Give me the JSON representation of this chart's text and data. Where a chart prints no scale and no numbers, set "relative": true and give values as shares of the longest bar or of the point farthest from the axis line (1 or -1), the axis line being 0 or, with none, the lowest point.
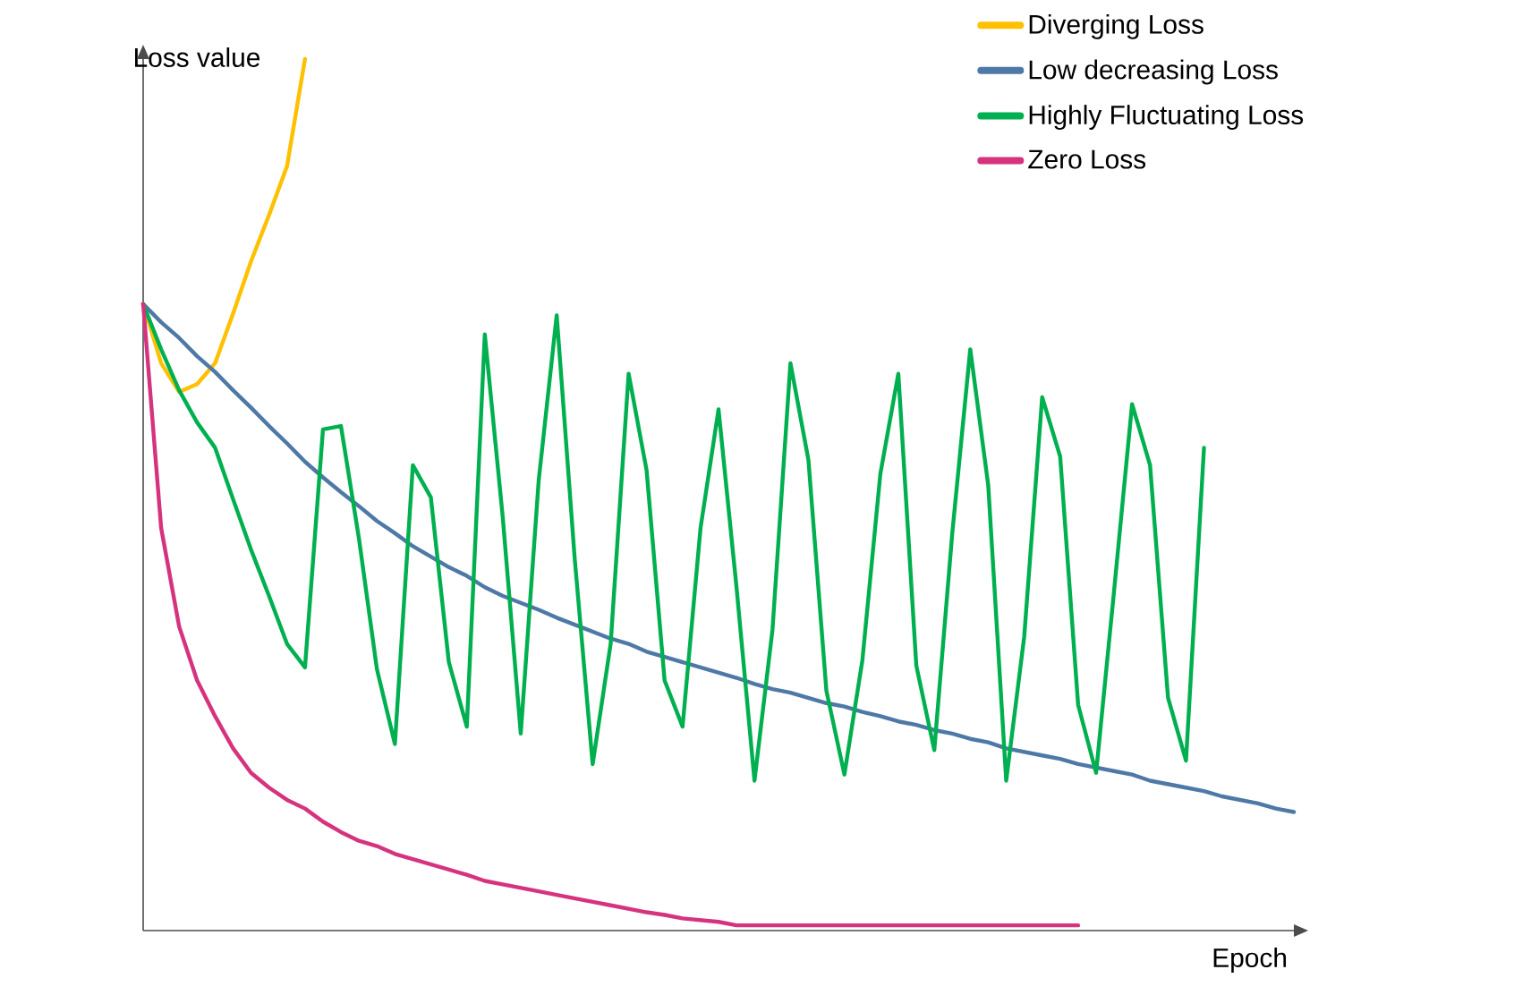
{
  "chart_data": {
    "type": "line",
    "relative": true,
    "xlabel": "Epoch",
    "ylabel": "Loss value",
    "legend": "top right",
    "marker": "none",
    "line_style": "solid",
    "categories": [
      null,
      null,
      null,
      null,
      null,
      null,
      null,
      null,
      null,
      null,
      null,
      null,
      null,
      null,
      null,
      null,
      null,
      null,
      null,
      null,
      null,
      null,
      null,
      null,
      null,
      null,
      null,
      null,
      null,
      null,
      null,
      null,
      null,
      null,
      null,
      null,
      null,
      null,
      null,
      null,
      null,
      null,
      null,
      null,
      null,
      null,
      null,
      null,
      null,
      null,
      null,
      null,
      null,
      null,
      null,
      null,
      null,
      null,
      null,
      null,
      null,
      null,
      null,
      null,
      null
    ],
    "series": [
      {
        "name": "Diverging Loss",
        "color": "#ffc000",
        "values": [
          0.719,
          0.651,
          0.618,
          0.627,
          0.651,
          0.708,
          0.768,
          0.821,
          0.877,
          1.0,
          null,
          null,
          null,
          null,
          null,
          null,
          null,
          null,
          null,
          null,
          null,
          null,
          null,
          null,
          null,
          null,
          null,
          null,
          null,
          null,
          null,
          null,
          null,
          null,
          null,
          null,
          null,
          null,
          null,
          null,
          null,
          null,
          null,
          null,
          null,
          null,
          null,
          null,
          null,
          null,
          null,
          null,
          null,
          null,
          null,
          null,
          null,
          null,
          null,
          null,
          null,
          null,
          null,
          null,
          null
        ]
      },
      {
        "name": "Low decreasing Loss",
        "color": "#4e79a7",
        "values": [
          0.719,
          0.698,
          0.68,
          0.659,
          0.641,
          0.62,
          0.6,
          0.579,
          0.559,
          0.538,
          0.52,
          0.503,
          0.487,
          0.47,
          0.456,
          0.441,
          0.429,
          0.417,
          0.407,
          0.394,
          0.384,
          0.376,
          0.368,
          0.359,
          0.351,
          0.343,
          0.335,
          0.329,
          0.32,
          0.314,
          0.308,
          0.302,
          0.296,
          0.29,
          0.283,
          0.277,
          0.273,
          0.267,
          0.261,
          0.257,
          0.251,
          0.246,
          0.24,
          0.236,
          0.23,
          0.226,
          0.22,
          0.216,
          0.209,
          0.205,
          0.201,
          0.197,
          0.191,
          0.187,
          0.183,
          0.179,
          0.172,
          0.168,
          0.164,
          0.16,
          0.154,
          0.15,
          0.146,
          0.14,
          0.136
        ]
      },
      {
        "name": "Highly Fluctuating Loss",
        "color": "#00b050",
        "values": [
          0.719,
          0.667,
          0.62,
          0.583,
          0.554,
          0.495,
          0.437,
          0.384,
          0.329,
          0.302,
          0.575,
          0.579,
          0.45,
          0.3,
          0.214,
          0.534,
          0.497,
          0.308,
          0.234,
          0.684,
          0.474,
          0.226,
          0.517,
          0.706,
          0.427,
          0.191,
          0.329,
          0.639,
          0.528,
          0.287,
          0.234,
          0.462,
          0.598,
          0.394,
          0.172,
          0.345,
          0.651,
          0.54,
          0.275,
          0.179,
          0.31,
          0.524,
          0.639,
          0.304,
          0.207,
          0.456,
          0.667,
          0.511,
          0.172,
          0.337,
          0.612,
          0.544,
          0.259,
          0.181,
          0.39,
          0.604,
          0.534,
          0.267,
          0.195,
          0.554,
          null,
          null,
          null,
          null,
          null
        ]
      },
      {
        "name": "Zero Loss",
        "color": "#d6337f",
        "values": [
          0.719,
          0.462,
          0.349,
          0.287,
          0.246,
          0.209,
          0.181,
          0.164,
          0.15,
          0.14,
          0.125,
          0.113,
          0.103,
          0.097,
          0.088,
          0.082,
          0.076,
          0.07,
          0.064,
          0.057,
          0.053,
          0.049,
          0.045,
          0.041,
          0.037,
          0.033,
          0.029,
          0.025,
          0.021,
          0.018,
          0.014,
          0.012,
          0.01,
          0.006,
          0.006,
          0.006,
          0.006,
          0.006,
          0.006,
          0.006,
          0.006,
          0.006,
          0.006,
          0.006,
          0.006,
          0.006,
          0.006,
          0.006,
          0.006,
          0.006,
          0.006,
          0.006,
          0.006,
          null,
          null,
          null,
          null,
          null,
          null,
          null,
          null,
          null,
          null,
          null,
          null
        ]
      }
    ]
  }
}
